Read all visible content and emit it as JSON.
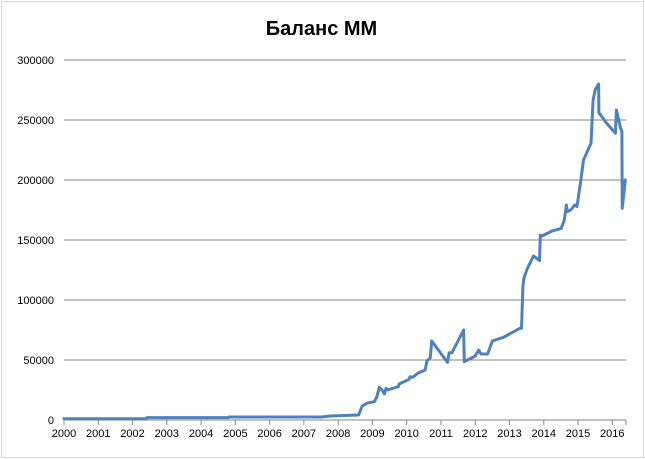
{
  "chart_data": {
    "type": "line",
    "title": "Баланс ММ",
    "xlabel": "",
    "ylabel": "",
    "xlim": [
      2000,
      2016.4
    ],
    "ylim": [
      0,
      300000
    ],
    "grid": true,
    "legend": "none",
    "x_ticks": [
      "2000",
      "2001",
      "2002",
      "2003",
      "2004",
      "2005",
      "2006",
      "2007",
      "2008",
      "2009",
      "2010",
      "2011",
      "2012",
      "2013",
      "2014",
      "2015",
      "2016"
    ],
    "y_ticks": [
      "0",
      "50000",
      "100000",
      "150000",
      "200000",
      "250000",
      "300000"
    ],
    "line_color": "#4f81bd",
    "series": [
      {
        "x": [
          2000,
          2002.4,
          2002.41,
          2004.8,
          2004.81,
          2007.5,
          2007.77,
          2008.6,
          2008.7,
          2008.84,
          2009.06,
          2009.13,
          2009.2,
          2009.28,
          2009.35,
          2009.4,
          2009.44,
          2009.76,
          2009.78,
          2010.07,
          2010.1,
          2010.18,
          2010.32,
          2010.54,
          2010.59,
          2010.69,
          2010.73,
          2011.19,
          2011.24,
          2011.32,
          2011.66,
          2011.68,
          2012.0,
          2012.1,
          2012.17,
          2012.36,
          2012.5,
          2012.83,
          2013.3,
          2013.35,
          2013.39,
          2013.42,
          2013.51,
          2013.7,
          2013.88,
          2013.9,
          2013.95,
          2014.24,
          2014.51,
          2014.6,
          2014.66,
          2014.68,
          2014.78,
          2014.83,
          2014.9,
          2014.97,
          2015.07,
          2015.16,
          2015.38,
          2015.44,
          2015.5,
          2015.6,
          2015.61,
          2015.84,
          2016.09,
          2016.12,
          2016.23,
          2016.28,
          2016.29,
          2016.38
        ],
        "y": [
          1000,
          1000,
          2000,
          2000,
          2500,
          2500,
          3300,
          4200,
          11600,
          14000,
          15300,
          19400,
          27200,
          25000,
          21700,
          26400,
          25000,
          27800,
          30000,
          33900,
          36100,
          35600,
          38900,
          41700,
          49200,
          51900,
          65800,
          48000,
          56000,
          56000,
          75000,
          48600,
          53300,
          58300,
          55000,
          55000,
          65800,
          69000,
          76400,
          76400,
          111000,
          118000,
          125600,
          136700,
          132800,
          154200,
          153300,
          157500,
          159700,
          166700,
          179200,
          173600,
          175000,
          176400,
          179200,
          177800,
          197200,
          216700,
          230600,
          266700,
          275000,
          280000,
          256100,
          247200,
          238900,
          258300,
          244400,
          240300,
          176400,
          200000
        ]
      }
    ]
  }
}
